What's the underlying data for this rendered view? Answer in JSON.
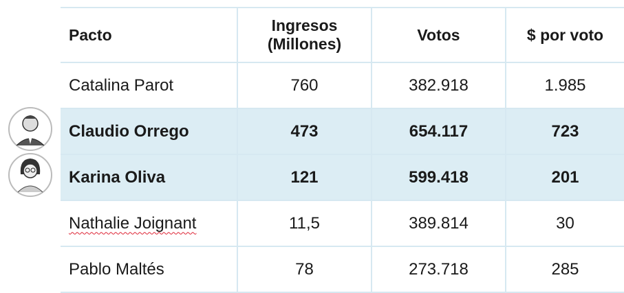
{
  "table": {
    "header": [
      "Pacto",
      "Ingresos (Millones)",
      "Votos",
      "$ por voto"
    ],
    "rows": [
      [
        "Catalina Parot",
        "760",
        "382.918",
        "1.985"
      ],
      [
        "Claudio Orrego",
        "473",
        "654.117",
        "723"
      ],
      [
        "Karina Oliva",
        "121",
        "599.418",
        "201"
      ],
      [
        "Nathalie Joignant",
        "11,5",
        "389.814",
        "30"
      ],
      [
        "Pablo Maltés",
        "78",
        "273.718",
        "285"
      ]
    ]
  }
}
